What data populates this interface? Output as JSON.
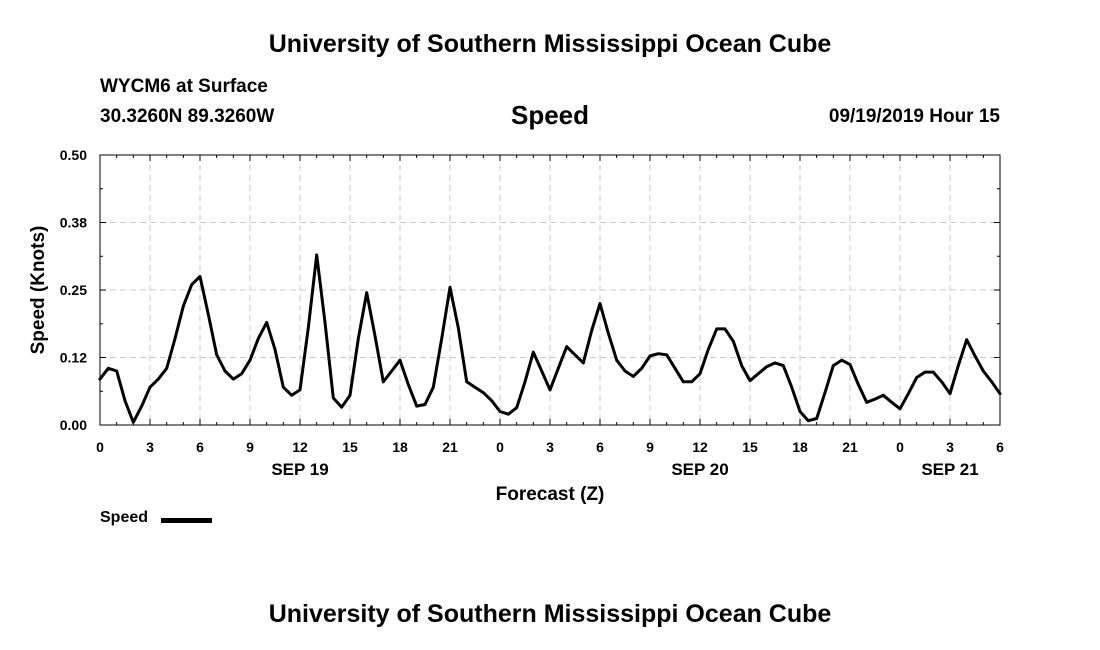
{
  "header": {
    "title": "University of Southern Mississippi Ocean Cube",
    "station": "WYCM6 at Surface",
    "coords": "30.3260N 89.3260W",
    "variable": "Speed",
    "datetime": "09/19/2019 Hour 15"
  },
  "footer": {
    "title": "University of Southern Mississippi Ocean Cube"
  },
  "legend": {
    "label": "Speed",
    "color": "#000000"
  },
  "chart_data": {
    "type": "line",
    "title": "Speed",
    "xlabel": "Forecast (Z)",
    "ylabel": "Speed (Knots)",
    "xlim": [
      0,
      54
    ],
    "ylim": [
      0,
      0.5
    ],
    "grid": true,
    "yticks": [
      0.0,
      0.125,
      0.25,
      0.375,
      0.5
    ],
    "ytick_labels": [
      "0.00",
      "0.12",
      "0.25",
      "0.38",
      "0.50"
    ],
    "xticks": [
      0,
      3,
      6,
      9,
      12,
      15,
      18,
      21,
      24,
      27,
      30,
      33,
      36,
      39,
      42,
      45,
      48,
      51,
      54
    ],
    "xtick_labels": [
      "0",
      "3",
      "6",
      "9",
      "12",
      "15",
      "18",
      "21",
      "0",
      "3",
      "6",
      "9",
      "12",
      "15",
      "18",
      "21",
      "0",
      "3",
      "6"
    ],
    "date_labels": [
      {
        "x": 12,
        "label": "SEP 19"
      },
      {
        "x": 36,
        "label": "SEP 20"
      },
      {
        "x": 51,
        "label": "SEP 21"
      }
    ],
    "series": [
      {
        "name": "Speed",
        "color": "#000000",
        "x": [
          0,
          0.5,
          1,
          1.5,
          2,
          2.5,
          3,
          3.5,
          4,
          4.5,
          5,
          5.5,
          6,
          6.5,
          7,
          7.5,
          8,
          8.5,
          9,
          9.5,
          10,
          10.5,
          11,
          11.5,
          12,
          12.5,
          13,
          13.5,
          14,
          14.5,
          15,
          15.5,
          16,
          16.5,
          17,
          17.5,
          18,
          18.5,
          19,
          19.5,
          20,
          20.5,
          21,
          21.5,
          22,
          22.5,
          23,
          23.5,
          24,
          24.5,
          25,
          25.5,
          26,
          26.5,
          27,
          27.5,
          28,
          28.5,
          29,
          29.5,
          30,
          30.5,
          31,
          31.5,
          32,
          32.5,
          33,
          33.5,
          34,
          34.5,
          35,
          35.5,
          36,
          36.5,
          37,
          37.5,
          38,
          38.5,
          39,
          39.5,
          40,
          40.5,
          41,
          41.5,
          42,
          42.5,
          43,
          43.5,
          44,
          44.5,
          45,
          45.5,
          46,
          46.5,
          47,
          47.5,
          48,
          48.5,
          49,
          49.5,
          50,
          50.5,
          51,
          51.5,
          52,
          52.5,
          53,
          53.5,
          54
        ],
        "values": [
          0.085,
          0.105,
          0.1,
          0.045,
          0.005,
          0.035,
          0.07,
          0.085,
          0.105,
          0.16,
          0.22,
          0.26,
          0.275,
          0.205,
          0.13,
          0.1,
          0.085,
          0.095,
          0.12,
          0.16,
          0.19,
          0.14,
          0.07,
          0.055,
          0.065,
          0.18,
          0.315,
          0.19,
          0.05,
          0.033,
          0.055,
          0.16,
          0.245,
          0.165,
          0.08,
          0.1,
          0.12,
          0.075,
          0.035,
          0.038,
          0.07,
          0.16,
          0.255,
          0.18,
          0.08,
          0.07,
          0.06,
          0.045,
          0.025,
          0.02,
          0.032,
          0.08,
          0.135,
          0.1,
          0.065,
          0.105,
          0.145,
          0.13,
          0.115,
          0.175,
          0.225,
          0.17,
          0.12,
          0.1,
          0.09,
          0.105,
          0.128,
          0.132,
          0.13,
          0.105,
          0.08,
          0.08,
          0.095,
          0.14,
          0.178,
          0.178,
          0.155,
          0.11,
          0.082,
          0.095,
          0.108,
          0.115,
          0.11,
          0.07,
          0.025,
          0.008,
          0.012,
          0.06,
          0.11,
          0.12,
          0.112,
          0.075,
          0.042,
          0.048,
          0.055,
          0.042,
          0.03,
          0.058,
          0.088,
          0.098,
          0.098,
          0.08,
          0.058,
          0.11,
          0.158,
          0.128,
          0.1,
          0.08,
          0.058
        ]
      }
    ]
  }
}
